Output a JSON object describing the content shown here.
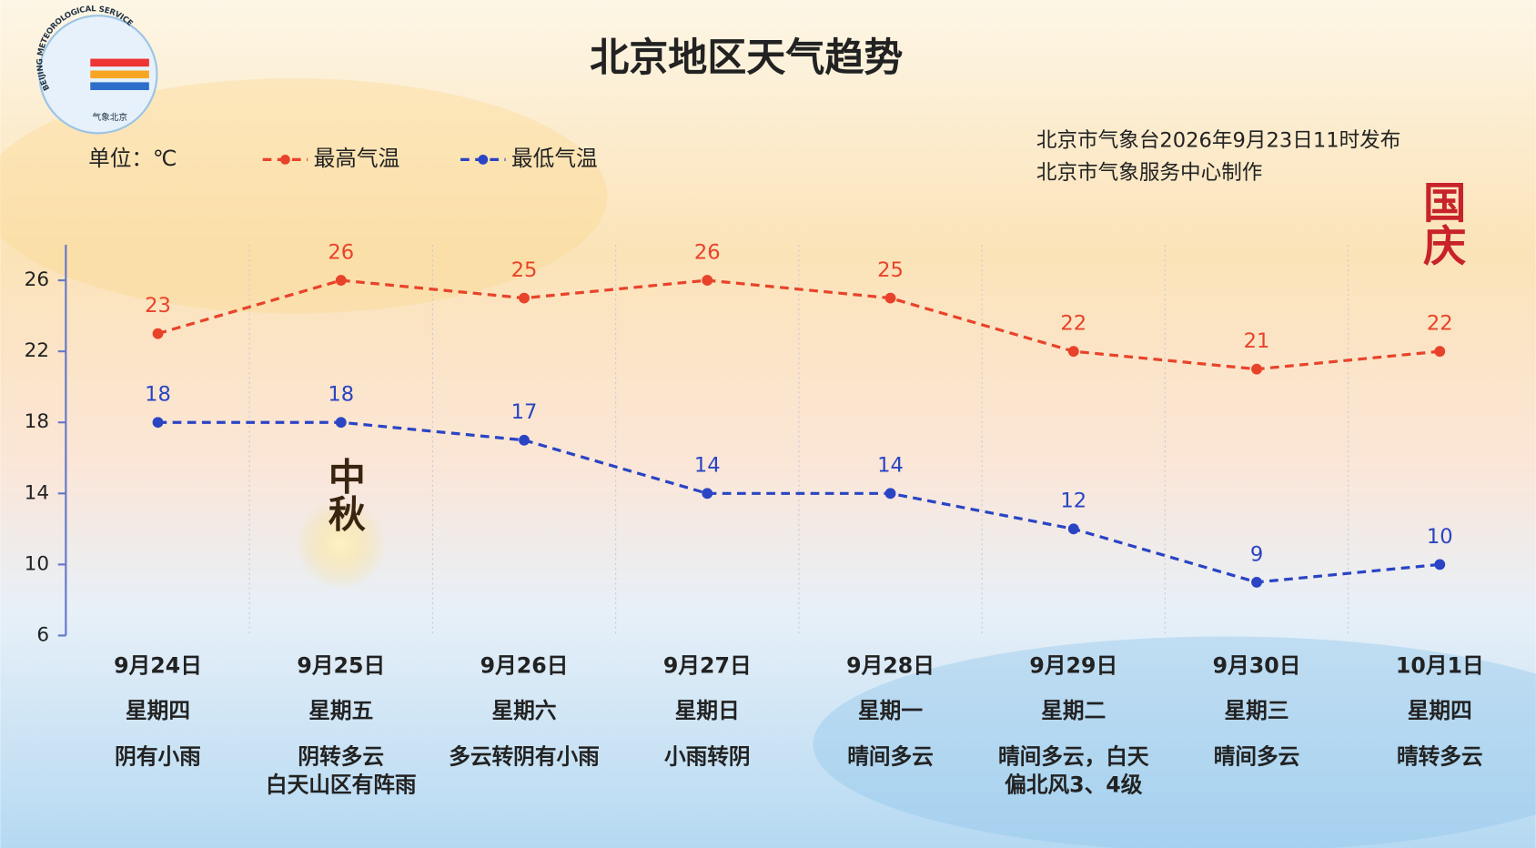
{
  "chart_data": {
    "type": "line",
    "title": "北京地区天气趋势",
    "unit_label": "单位：℃",
    "issuer": [
      "北京市气象台2026年9月23日11时发布",
      "北京市气象服务中心制作"
    ],
    "annotations": [
      "国庆",
      "中秋"
    ],
    "logo_text": [
      "BEIJING METEOROLOGICAL SERVICE",
      "气象北京"
    ],
    "categories": [
      "9月24日",
      "9月25日",
      "9月26日",
      "9月27日",
      "9月28日",
      "9月29日",
      "9月30日",
      "10月1日"
    ],
    "weekdays": [
      "星期四",
      "星期五",
      "星期六",
      "星期日",
      "星期一",
      "星期二",
      "星期三",
      "星期四"
    ],
    "weather": [
      [
        "阴有小雨"
      ],
      [
        "阴转多云",
        "白天山区有阵雨"
      ],
      [
        "多云转阴有小雨"
      ],
      [
        "小雨转阴"
      ],
      [
        "晴间多云"
      ],
      [
        "晴间多云，白天",
        "偏北风3、4级"
      ],
      [
        "晴间多云"
      ],
      [
        "晴转多云"
      ]
    ],
    "series": [
      {
        "name": "最高气温",
        "color": "#e8432a",
        "values": [
          23,
          26,
          25,
          26,
          25,
          22,
          21,
          22
        ]
      },
      {
        "name": "最低气温",
        "color": "#2a44c4",
        "values": [
          18,
          18,
          17,
          14,
          14,
          12,
          9,
          10
        ]
      }
    ],
    "ylim": [
      6,
      28
    ],
    "yticks": [
      6,
      10,
      14,
      18,
      22,
      26
    ],
    "line_style": "dashed"
  }
}
